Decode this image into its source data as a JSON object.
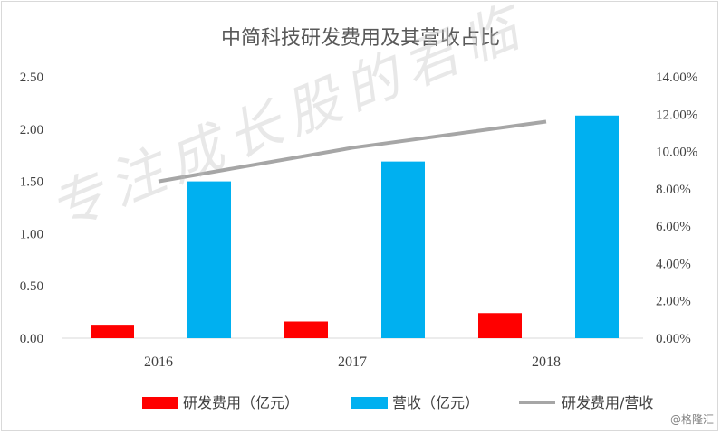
{
  "chart_data": {
    "type": "bar",
    "title": "中简科技研发费用及其营收占比",
    "categories": [
      "2016",
      "2017",
      "2018"
    ],
    "series": [
      {
        "name": "研发费用（亿元）",
        "values": [
          0.12,
          0.16,
          0.24
        ],
        "color": "#ff0000",
        "axis": "left"
      },
      {
        "name": "营收（亿元）",
        "values": [
          1.5,
          1.69,
          2.13
        ],
        "color": "#00b0f0",
        "axis": "left"
      },
      {
        "name": "研发费用/营收",
        "type": "line",
        "values": [
          8.4,
          10.2,
          11.6
        ],
        "color": "#a6a6a6",
        "axis": "right"
      }
    ],
    "left_axis": {
      "ylim": [
        0,
        2.5
      ],
      "ticks": [
        "0.00",
        "0.50",
        "1.00",
        "1.50",
        "2.00",
        "2.50"
      ]
    },
    "right_axis": {
      "ylim": [
        0,
        14
      ],
      "ticks": [
        "0.00%",
        "2.00%",
        "4.00%",
        "6.00%",
        "8.00%",
        "10.00%",
        "12.00%",
        "14.00%"
      ]
    },
    "legend_position": "bottom",
    "grid": false
  },
  "watermark": "专注成长股的君临",
  "source_label": "@格隆汇"
}
